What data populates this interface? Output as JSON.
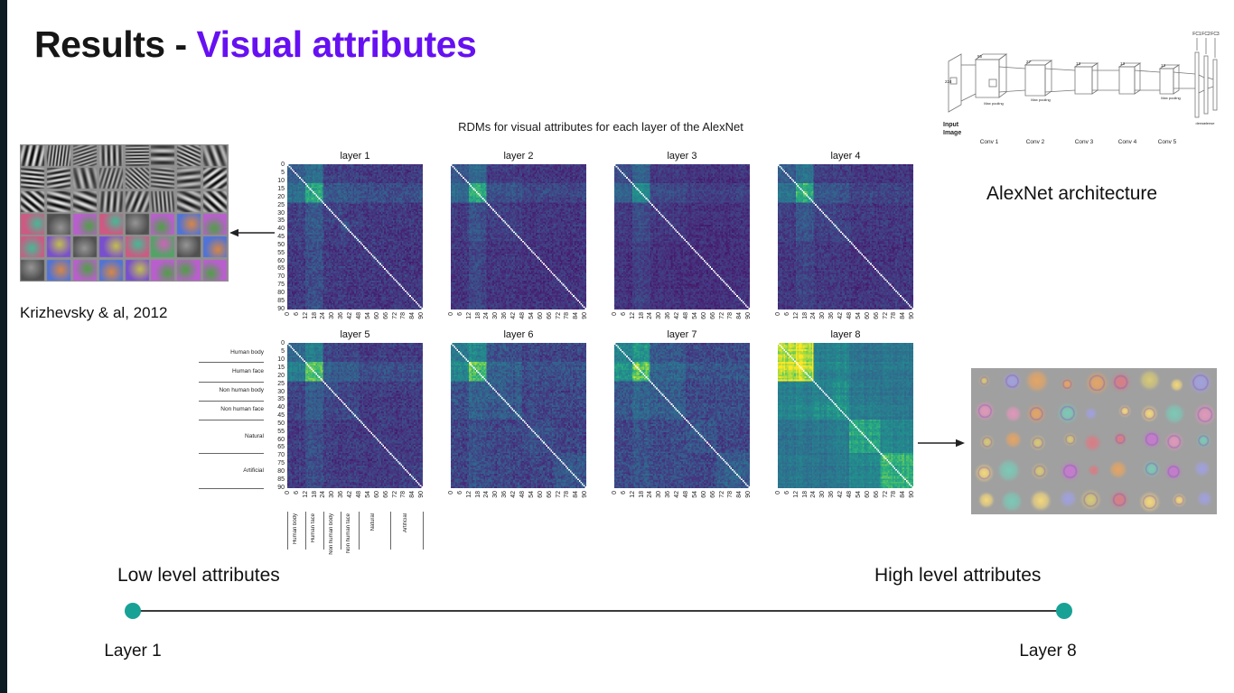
{
  "slide": {
    "title": {
      "prefix": "Results - ",
      "highlight": "Visual attributes"
    },
    "accent_color": "#6610f2",
    "left_bar_color": "#0d1b22"
  },
  "captions": {
    "krizhevsky": "Krizhevsky & al, 2012",
    "alexnet_architecture": "AlexNet architecture"
  },
  "alexnet_diagram": {
    "conv_labels": [
      "Conv 1",
      "Conv 2",
      "Conv 3",
      "Conv 4",
      "Conv 5"
    ],
    "fc_labels": [
      "FC1",
      "FC2",
      "FC3"
    ],
    "input_label_lines": [
      "Input",
      "Image"
    ],
    "pool_label": "Max pooling",
    "dense_label": "dense",
    "dims": [
      "224",
      "55",
      "27",
      "13",
      "13",
      "13"
    ]
  },
  "slider": {
    "left_label": "Low level attributes",
    "right_label": "High level attributes",
    "left_sub": "Layer 1",
    "right_sub": "Layer 8",
    "dot_color": "#18a296",
    "line_color": "#3a3a3a"
  },
  "chart_data": {
    "type": "heatmap",
    "title": "RDMs for visual attributes for each layer of the AlexNet",
    "n_items": 91,
    "colormap": "viridis",
    "diagonal": "white",
    "x_ticks": [
      0,
      6,
      12,
      18,
      24,
      30,
      36,
      42,
      48,
      54,
      60,
      66,
      72,
      78,
      84,
      90
    ],
    "y_ticks": [
      0,
      5,
      10,
      15,
      20,
      25,
      30,
      35,
      40,
      45,
      50,
      55,
      60,
      65,
      70,
      75,
      80,
      85,
      90
    ],
    "categories": [
      "Human body",
      "Human face",
      "Non human body",
      "Non human face",
      "Natural",
      "Artificial"
    ],
    "category_boundaries": [
      0,
      12,
      24,
      36,
      48,
      69,
      91
    ],
    "layers": [
      {
        "name": "layer 1",
        "noise": 0.16,
        "blocks": [
          [
            0.28,
            0.36,
            0.18,
            0.18,
            0.16,
            0.16
          ],
          [
            0.36,
            0.62,
            0.26,
            0.26,
            0.22,
            0.22
          ],
          [
            0.18,
            0.26,
            0.2,
            0.18,
            0.16,
            0.16
          ],
          [
            0.18,
            0.26,
            0.18,
            0.2,
            0.16,
            0.16
          ],
          [
            0.16,
            0.22,
            0.16,
            0.16,
            0.15,
            0.15
          ],
          [
            0.16,
            0.22,
            0.16,
            0.16,
            0.15,
            0.16
          ]
        ]
      },
      {
        "name": "layer 2",
        "noise": 0.14,
        "blocks": [
          [
            0.26,
            0.34,
            0.17,
            0.17,
            0.15,
            0.15
          ],
          [
            0.34,
            0.66,
            0.24,
            0.24,
            0.2,
            0.2
          ],
          [
            0.17,
            0.24,
            0.18,
            0.17,
            0.15,
            0.15
          ],
          [
            0.17,
            0.24,
            0.17,
            0.18,
            0.15,
            0.15
          ],
          [
            0.15,
            0.2,
            0.15,
            0.15,
            0.14,
            0.14
          ],
          [
            0.15,
            0.2,
            0.15,
            0.15,
            0.14,
            0.15
          ]
        ]
      },
      {
        "name": "layer 3",
        "noise": 0.12,
        "blocks": [
          [
            0.22,
            0.3,
            0.16,
            0.16,
            0.14,
            0.14
          ],
          [
            0.3,
            0.52,
            0.22,
            0.22,
            0.18,
            0.18
          ],
          [
            0.16,
            0.22,
            0.17,
            0.16,
            0.14,
            0.14
          ],
          [
            0.16,
            0.22,
            0.16,
            0.17,
            0.14,
            0.14
          ],
          [
            0.14,
            0.18,
            0.14,
            0.14,
            0.13,
            0.13
          ],
          [
            0.14,
            0.18,
            0.14,
            0.14,
            0.13,
            0.14
          ]
        ]
      },
      {
        "name": "layer 4",
        "noise": 0.14,
        "blocks": [
          [
            0.3,
            0.4,
            0.18,
            0.18,
            0.16,
            0.16
          ],
          [
            0.4,
            0.68,
            0.26,
            0.26,
            0.2,
            0.2
          ],
          [
            0.18,
            0.26,
            0.2,
            0.18,
            0.16,
            0.16
          ],
          [
            0.18,
            0.26,
            0.18,
            0.2,
            0.16,
            0.16
          ],
          [
            0.16,
            0.2,
            0.16,
            0.16,
            0.15,
            0.15
          ],
          [
            0.16,
            0.2,
            0.16,
            0.16,
            0.15,
            0.16
          ]
        ]
      },
      {
        "name": "layer 5",
        "noise": 0.15,
        "blocks": [
          [
            0.34,
            0.44,
            0.2,
            0.2,
            0.17,
            0.17
          ],
          [
            0.44,
            0.72,
            0.28,
            0.28,
            0.22,
            0.22
          ],
          [
            0.2,
            0.28,
            0.22,
            0.2,
            0.17,
            0.17
          ],
          [
            0.2,
            0.28,
            0.2,
            0.22,
            0.17,
            0.17
          ],
          [
            0.17,
            0.22,
            0.17,
            0.17,
            0.16,
            0.16
          ],
          [
            0.17,
            0.22,
            0.17,
            0.17,
            0.16,
            0.17
          ]
        ]
      },
      {
        "name": "layer 6",
        "noise": 0.18,
        "blocks": [
          [
            0.42,
            0.5,
            0.24,
            0.24,
            0.2,
            0.2
          ],
          [
            0.5,
            0.74,
            0.3,
            0.3,
            0.24,
            0.24
          ],
          [
            0.24,
            0.3,
            0.28,
            0.26,
            0.21,
            0.21
          ],
          [
            0.24,
            0.3,
            0.26,
            0.28,
            0.21,
            0.21
          ],
          [
            0.2,
            0.24,
            0.21,
            0.21,
            0.24,
            0.2
          ],
          [
            0.2,
            0.24,
            0.21,
            0.21,
            0.2,
            0.26
          ]
        ]
      },
      {
        "name": "layer 7",
        "noise": 0.18,
        "blocks": [
          [
            0.46,
            0.54,
            0.26,
            0.26,
            0.21,
            0.21
          ],
          [
            0.54,
            0.76,
            0.32,
            0.32,
            0.25,
            0.25
          ],
          [
            0.26,
            0.32,
            0.3,
            0.28,
            0.22,
            0.22
          ],
          [
            0.26,
            0.32,
            0.28,
            0.3,
            0.22,
            0.22
          ],
          [
            0.21,
            0.25,
            0.22,
            0.22,
            0.26,
            0.21
          ],
          [
            0.21,
            0.25,
            0.22,
            0.22,
            0.21,
            0.28
          ]
        ]
      },
      {
        "name": "layer 8",
        "noise": 0.12,
        "blocks": [
          [
            0.84,
            0.9,
            0.44,
            0.46,
            0.38,
            0.4
          ],
          [
            0.9,
            0.92,
            0.46,
            0.48,
            0.4,
            0.42
          ],
          [
            0.44,
            0.46,
            0.46,
            0.52,
            0.42,
            0.4
          ],
          [
            0.46,
            0.48,
            0.52,
            0.54,
            0.44,
            0.42
          ],
          [
            0.38,
            0.4,
            0.42,
            0.44,
            0.64,
            0.5
          ],
          [
            0.4,
            0.42,
            0.4,
            0.42,
            0.5,
            0.7
          ]
        ]
      }
    ]
  }
}
